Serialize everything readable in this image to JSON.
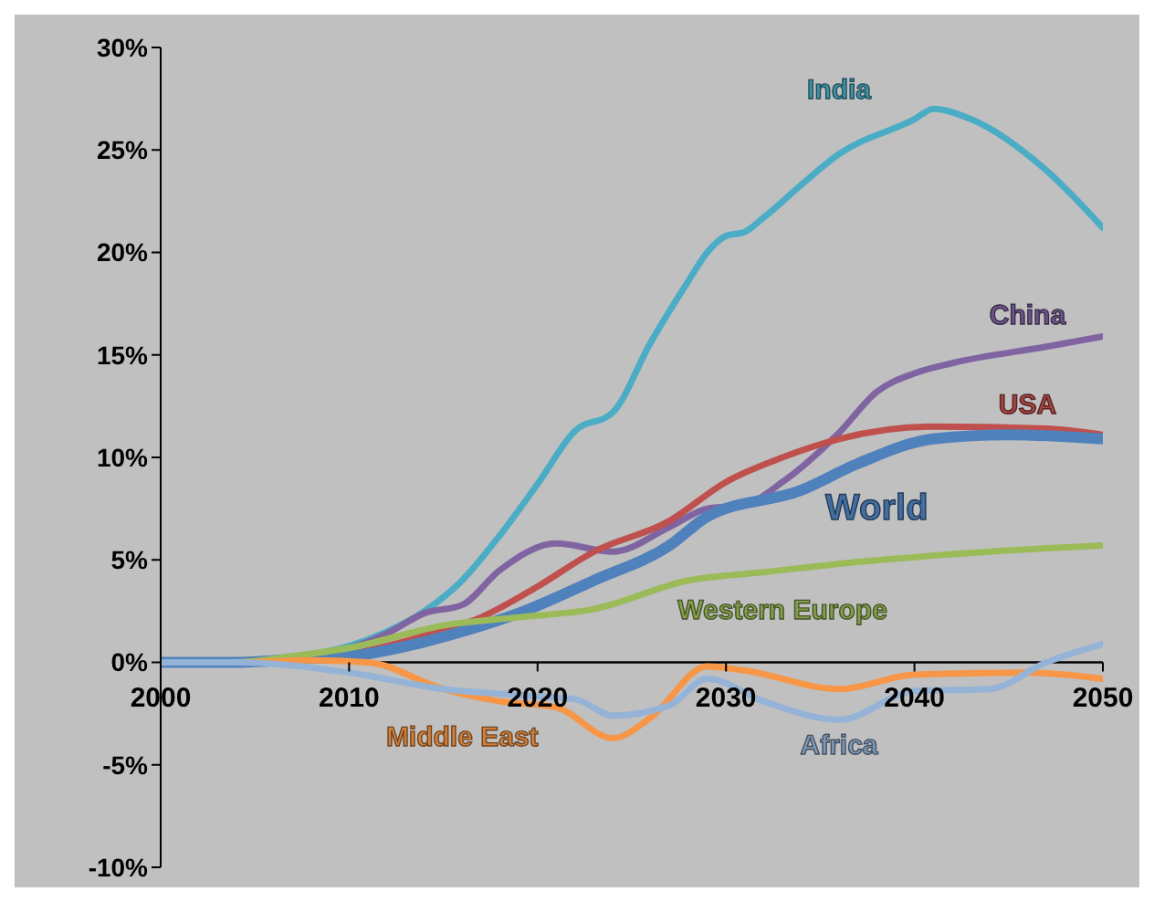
{
  "chart_data": {
    "type": "line",
    "xlim": [
      2000,
      2050
    ],
    "xticks": [
      2000,
      2010,
      2020,
      2030,
      2040,
      2050
    ],
    "ylim": [
      -10,
      30
    ],
    "yticks": [
      {
        "value": -10,
        "label": "-10%"
      },
      {
        "value": -5,
        "label": "-5%"
      },
      {
        "value": 0,
        "label": "0%"
      },
      {
        "value": 5,
        "label": "5%"
      },
      {
        "value": 10,
        "label": "10%"
      },
      {
        "value": 15,
        "label": "15%"
      },
      {
        "value": 20,
        "label": "20%"
      },
      {
        "value": 25,
        "label": "25%"
      },
      {
        "value": 30,
        "label": "30%"
      }
    ],
    "grid": false,
    "legend": false,
    "marker": "none",
    "line_style": "solid",
    "series": [
      {
        "name": "India",
        "color": "#4bacc6",
        "x": [
          2000,
          2004,
          2006,
          2008,
          2010,
          2012,
          2014,
          2016,
          2018,
          2020,
          2022,
          2024,
          2026,
          2028,
          2029,
          2030,
          2031,
          2032,
          2034,
          2036,
          2040,
          2041,
          2043,
          2047,
          2050
        ],
        "values": [
          0,
          0,
          0.2,
          0.4,
          0.8,
          1.5,
          2.5,
          4,
          6.2,
          8.7,
          11.3,
          12.2,
          15.6,
          18.6,
          20,
          20.8,
          21,
          21.7,
          23.3,
          24.8,
          26.5,
          27,
          26.5,
          24,
          21.2
        ]
      },
      {
        "name": "China",
        "color": "#8064a2",
        "x": [
          2000,
          2004,
          2008,
          2010,
          2012,
          2014,
          2016,
          2018,
          2021,
          2024,
          2027,
          2029,
          2031,
          2033,
          2036,
          2038,
          2040,
          2042,
          2047,
          2050
        ],
        "values": [
          0,
          0,
          0.4,
          0.7,
          1.4,
          2.4,
          2.8,
          4.5,
          5.8,
          5.4,
          6.6,
          7.5,
          7.7,
          8.8,
          11.2,
          13.2,
          14.1,
          14.6,
          15.4,
          15.9
        ]
      },
      {
        "name": "USA",
        "color": "#c0504d",
        "x": [
          2000,
          2004,
          2010,
          2012,
          2014,
          2017,
          2020,
          2023,
          2027,
          2030,
          2033,
          2036,
          2041,
          2047,
          2050
        ],
        "values": [
          0,
          0,
          0.4,
          0.8,
          1.3,
          2.2,
          3.7,
          5.4,
          6.9,
          8.8,
          10,
          10.9,
          11.5,
          11.4,
          11.1
        ]
      },
      {
        "name": "World",
        "color": "#4f81bd",
        "x": [
          2000,
          2004,
          2008,
          2010,
          2014,
          2016,
          2019,
          2023,
          2027,
          2029,
          2034,
          2037,
          2041,
          2045,
          2050
        ],
        "values": [
          0,
          0,
          0.2,
          0.3,
          1,
          1.5,
          2.4,
          4,
          5.7,
          7.1,
          8.4,
          9.7,
          10.9,
          11.1,
          10.9
        ]
      },
      {
        "name": "Western Europe",
        "color": "#9bbb59",
        "x": [
          2000,
          2004,
          2007,
          2010,
          2015,
          2019,
          2023,
          2028,
          2032,
          2037,
          2044,
          2050
        ],
        "values": [
          0,
          0,
          0.3,
          0.7,
          1.8,
          2.2,
          2.6,
          4,
          4.4,
          4.9,
          5.4,
          5.7
        ]
      },
      {
        "name": "Middle East",
        "color": "#f79646",
        "x": [
          2000,
          2004,
          2008,
          2011,
          2015,
          2018,
          2021,
          2024,
          2026,
          2029,
          2031,
          2036,
          2040,
          2046,
          2050
        ],
        "values": [
          0,
          0,
          0.1,
          0,
          -1.3,
          -1.9,
          -2.2,
          -3.7,
          -2.7,
          -0.2,
          -0.4,
          -1.3,
          -0.6,
          -0.5,
          -0.8
        ]
      },
      {
        "name": "Africa",
        "color": "#95b3d7",
        "x": [
          2000,
          2004,
          2010,
          2015,
          2019,
          2022,
          2024,
          2027,
          2029,
          2032,
          2036,
          2040,
          2044,
          2047,
          2050
        ],
        "values": [
          0,
          0,
          -0.5,
          -1.3,
          -1.6,
          -1.8,
          -2.6,
          -2.1,
          -0.8,
          -1.9,
          -2.8,
          -1.4,
          -1.3,
          0,
          0.9
        ]
      }
    ]
  }
}
